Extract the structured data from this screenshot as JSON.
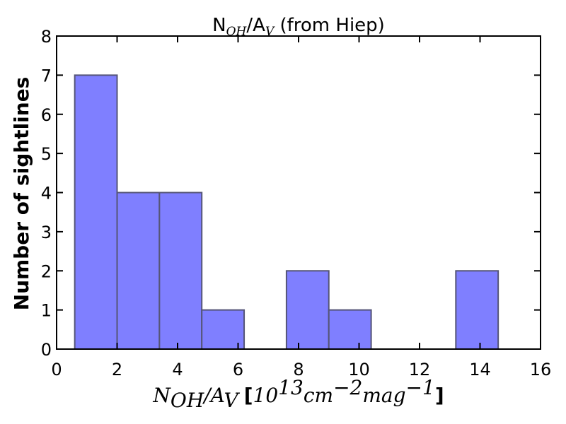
{
  "chart_data": {
    "type": "bar",
    "title": "N_OH/A_V (from Hiep)",
    "title_parts": {
      "main": "N",
      "sub1": "OH",
      "mid": "/A",
      "sub2": "V",
      "tail": " (from Hiep)"
    },
    "xlabel": "N_OH/A_V [10^13 cm^-2 mag^-1]",
    "xlabel_parts": {
      "n": "N",
      "n_sub": "OH",
      "slash": "/",
      "a": "A",
      "a_sub": "V",
      "open": "[",
      "base": "10",
      "exp1": "13",
      "cm": "cm",
      "exp2": "−2",
      "mag": "mag",
      "exp3": "−1",
      "close": "]"
    },
    "ylabel": "Number of sightlines",
    "xlim": [
      0,
      16
    ],
    "ylim": [
      0,
      8
    ],
    "xticks": [
      "0",
      "2",
      "4",
      "6",
      "8",
      "10",
      "12",
      "14",
      "16"
    ],
    "yticks": [
      "0",
      "1",
      "2",
      "3",
      "4",
      "5",
      "6",
      "7",
      "8"
    ],
    "bin_edges": [
      0.6,
      2.0,
      3.4,
      4.8,
      6.2,
      7.6,
      9.0,
      10.4,
      11.8,
      13.2,
      14.6
    ],
    "counts": [
      7,
      4,
      4,
      1,
      0,
      2,
      1,
      0,
      0,
      2
    ],
    "fill_color": "#7f7fff",
    "edge_color": "#555577",
    "grid": false
  }
}
